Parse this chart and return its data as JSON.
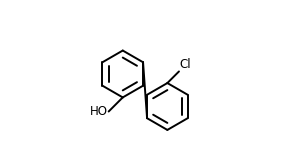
{
  "bg_color": "#ffffff",
  "line_color": "#000000",
  "line_width": 1.4,
  "font_size": 8.5,
  "text_color": "#000000",
  "ho_label": "HO",
  "cl_label": "Cl",
  "r1cx": 0.3,
  "r1cy": 0.52,
  "r2cx": 0.595,
  "r2cy": 0.305,
  "ring_r": 0.155,
  "inner_ratio": 0.7,
  "xlim": [
    0,
    1
  ],
  "ylim": [
    0,
    1
  ]
}
